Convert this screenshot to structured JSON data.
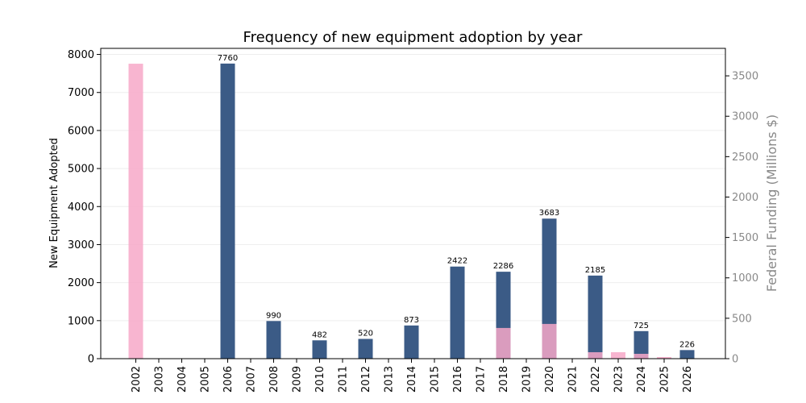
{
  "chart_data": {
    "type": "bar",
    "title": "Frequency of new equipment adoption by year",
    "xlabel": "",
    "ylabel": "New Equipment Adopted",
    "y2label": "Federal Funding (Millions $)",
    "categories": [
      "2002",
      "2003",
      "2004",
      "2005",
      "2006",
      "2007",
      "2008",
      "2009",
      "2010",
      "2011",
      "2012",
      "2013",
      "2014",
      "2015",
      "2016",
      "2017",
      "2018",
      "2019",
      "2020",
      "2021",
      "2022",
      "2023",
      "2024",
      "2025",
      "2026"
    ],
    "ylim": [
      0,
      8160
    ],
    "y2lim": [
      0,
      3840
    ],
    "yticks": [
      0,
      1000,
      2000,
      3000,
      4000,
      5000,
      6000,
      7000,
      8000
    ],
    "y2ticks": [
      0,
      500,
      1000,
      1500,
      2000,
      2500,
      3000,
      3500
    ],
    "grid": true,
    "series": [
      {
        "axis": "left",
        "color": "#3b5b86",
        "values": [
          null,
          null,
          null,
          null,
          7760,
          null,
          990,
          null,
          482,
          null,
          520,
          null,
          873,
          null,
          2422,
          null,
          2286,
          null,
          3683,
          null,
          2185,
          null,
          725,
          null,
          226
        ],
        "data_labels": true
      },
      {
        "axis": "right",
        "color": "#f7a8c8",
        "values": [
          3650,
          null,
          null,
          null,
          null,
          null,
          null,
          null,
          null,
          null,
          null,
          null,
          null,
          null,
          null,
          null,
          380,
          null,
          430,
          null,
          80,
          80,
          60,
          20,
          null
        ],
        "data_labels": false
      }
    ]
  }
}
